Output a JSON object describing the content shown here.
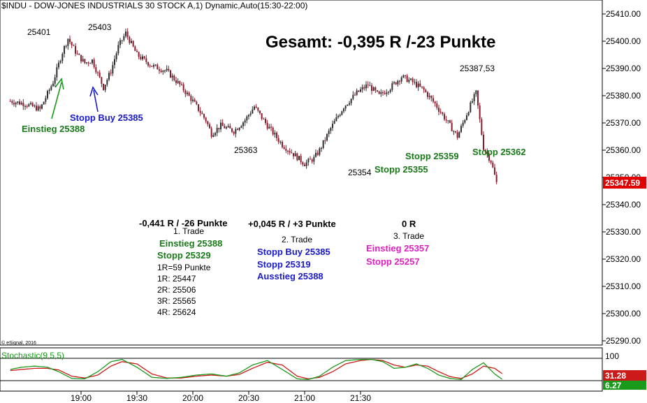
{
  "header": {
    "title": "$INDU - DOW-JONES INDUSTRIALS 30 STOCK A,1) Dynamic,Auto(15:30-22:00)"
  },
  "summary": {
    "gesamt": "Gesamt: -0,395 R /-23 Punkte"
  },
  "copyright": "© eSignal, 2016",
  "colors": {
    "up": "#2e2e2e",
    "down": "#8b1a2b",
    "green_text": "#1a7a1a",
    "blue_text": "#1a1acc",
    "pink_text": "#e020c0",
    "price_tag": "#e00000",
    "stoch_k": "#1a9a1a",
    "stoch_d": "#cc1a1a"
  },
  "annotations": {
    "peak1": "25401",
    "peak2": "25403",
    "einstieg1": "Einstieg 25388",
    "stopp_buy": "Stopp Buy 25385",
    "low1": "25363",
    "low2": "25354",
    "stopp_25355": "Stopp 25355",
    "stopp_25359": "Stopp 25359",
    "stopp_25362": "Stopp 25362",
    "peak3": "25387,53"
  },
  "trades": {
    "t1": {
      "result": "-0,441 R / -26 Punkte",
      "title": "1. Trade",
      "entry": "Einstieg 25388",
      "stop": "Stopp 25329",
      "r": "1R=59 Punkte",
      "r1": "1R: 25447",
      "r2": "2R: 25506",
      "r3": "3R: 25565",
      "r4": "4R: 25624"
    },
    "t2": {
      "result": "+0,045 R / +3 Punkte",
      "title": "2. Trade",
      "entry": "Stopp Buy 25385",
      "stop": "Stopp 25319",
      "exit": "Ausstieg 25388"
    },
    "t3": {
      "result": "0 R",
      "title": "3. Trade",
      "entry": "Einstieg 25357",
      "stop": "Stopp 25257"
    }
  },
  "stochastic": {
    "label": "Stochastic(9,5,5)",
    "level_top": "100",
    "value_d": "31.28",
    "value_k": "6.27"
  },
  "chart_data": {
    "type": "candlestick",
    "title": "$INDU - DOW-JONES INDUSTRIALS 30 STOCK A,1) Dynamic,Auto(15:30-22:00)",
    "y_ticks": [
      "25410.00",
      "25400.00",
      "25390.00",
      "25380.00",
      "25370.00",
      "25360.00",
      "25350.00",
      "25340.00",
      "25330.00",
      "25320.00",
      "25310.00",
      "25300.00",
      "25290.00"
    ],
    "y_tick_values": [
      25410,
      25400,
      25390,
      25380,
      25370,
      25360,
      25350,
      25340,
      25330,
      25320,
      25310,
      25300,
      25290
    ],
    "x_ticks": [
      "19:00",
      "19:30",
      "20:00",
      "20:30",
      "21:00",
      "21:30"
    ],
    "last_price": "25347.59",
    "ylim": [
      25286,
      25412
    ],
    "anchors": [
      [
        "18:22",
        25378
      ],
      [
        "18:30",
        25377
      ],
      [
        "18:38",
        25375
      ],
      [
        "18:45",
        25385
      ],
      [
        "18:50",
        25396
      ],
      [
        "18:53",
        25401
      ],
      [
        "18:58",
        25395
      ],
      [
        "19:02",
        25392
      ],
      [
        "19:06",
        25393
      ],
      [
        "19:09",
        25388
      ],
      [
        "19:12",
        25383
      ],
      [
        "19:16",
        25389
      ],
      [
        "19:20",
        25398
      ],
      [
        "19:24",
        25403
      ],
      [
        "19:30",
        25395
      ],
      [
        "19:38",
        25391
      ],
      [
        "19:46",
        25389
      ],
      [
        "19:53",
        25384
      ],
      [
        "20:00",
        25378
      ],
      [
        "20:07",
        25371
      ],
      [
        "20:10",
        25366
      ],
      [
        "20:15",
        25369
      ],
      [
        "20:22",
        25367
      ],
      [
        "20:28",
        25371
      ],
      [
        "20:33",
        25376
      ],
      [
        "20:40",
        25369
      ],
      [
        "20:48",
        25362
      ],
      [
        "20:55",
        25358
      ],
      [
        "21:00",
        25355
      ],
      [
        "21:05",
        25357
      ],
      [
        "21:08",
        25360
      ],
      [
        "21:14",
        25368
      ],
      [
        "21:21",
        25376
      ],
      [
        "21:28",
        25381
      ],
      [
        "21:34",
        25384
      ],
      [
        "21:40",
        25380
      ],
      [
        "21:46",
        25383
      ],
      [
        "21:52",
        25387
      ],
      [
        "21:58",
        25385
      ],
      [
        "22:04",
        25382
      ],
      [
        "22:10",
        25377
      ],
      [
        "22:16",
        25371
      ],
      [
        "22:22",
        25365
      ],
      [
        "22:28",
        25375
      ],
      [
        "22:32",
        25381
      ],
      [
        "22:36",
        25361
      ],
      [
        "22:40",
        25356
      ],
      [
        "22:43",
        25348
      ]
    ],
    "stoch_anchors": [
      [
        "18:22",
        50,
        45
      ],
      [
        "18:28",
        60,
        50
      ],
      [
        "18:35",
        65,
        55
      ],
      [
        "18:42",
        60,
        55
      ],
      [
        "18:48",
        40,
        48
      ],
      [
        "18:55",
        10,
        20
      ],
      [
        "19:02",
        8,
        12
      ],
      [
        "19:09",
        40,
        25
      ],
      [
        "19:16",
        85,
        65
      ],
      [
        "19:22",
        95,
        85
      ],
      [
        "19:30",
        60,
        75
      ],
      [
        "19:38",
        15,
        30
      ],
      [
        "19:46",
        10,
        12
      ],
      [
        "19:54",
        15,
        12
      ],
      [
        "20:02",
        25,
        20
      ],
      [
        "20:10",
        30,
        25
      ],
      [
        "20:18",
        20,
        20
      ],
      [
        "20:25",
        35,
        28
      ],
      [
        "20:32",
        70,
        55
      ],
      [
        "20:40",
        90,
        82
      ],
      [
        "20:48",
        50,
        70
      ],
      [
        "20:56",
        8,
        20
      ],
      [
        "21:02",
        5,
        8
      ],
      [
        "21:08",
        20,
        15
      ],
      [
        "21:15",
        60,
        40
      ],
      [
        "21:22",
        90,
        75
      ],
      [
        "21:30",
        95,
        90
      ],
      [
        "21:36",
        95,
        95
      ],
      [
        "21:42",
        85,
        90
      ],
      [
        "21:48",
        55,
        70
      ],
      [
        "21:54",
        60,
        60
      ],
      [
        "22:00",
        75,
        70
      ],
      [
        "22:06",
        55,
        65
      ],
      [
        "22:12",
        25,
        40
      ],
      [
        "22:18",
        10,
        18
      ],
      [
        "22:24",
        5,
        10
      ],
      [
        "22:30",
        50,
        30
      ],
      [
        "22:36",
        80,
        65
      ],
      [
        "22:42",
        30,
        55
      ],
      [
        "22:46",
        6.27,
        31.28
      ]
    ]
  }
}
